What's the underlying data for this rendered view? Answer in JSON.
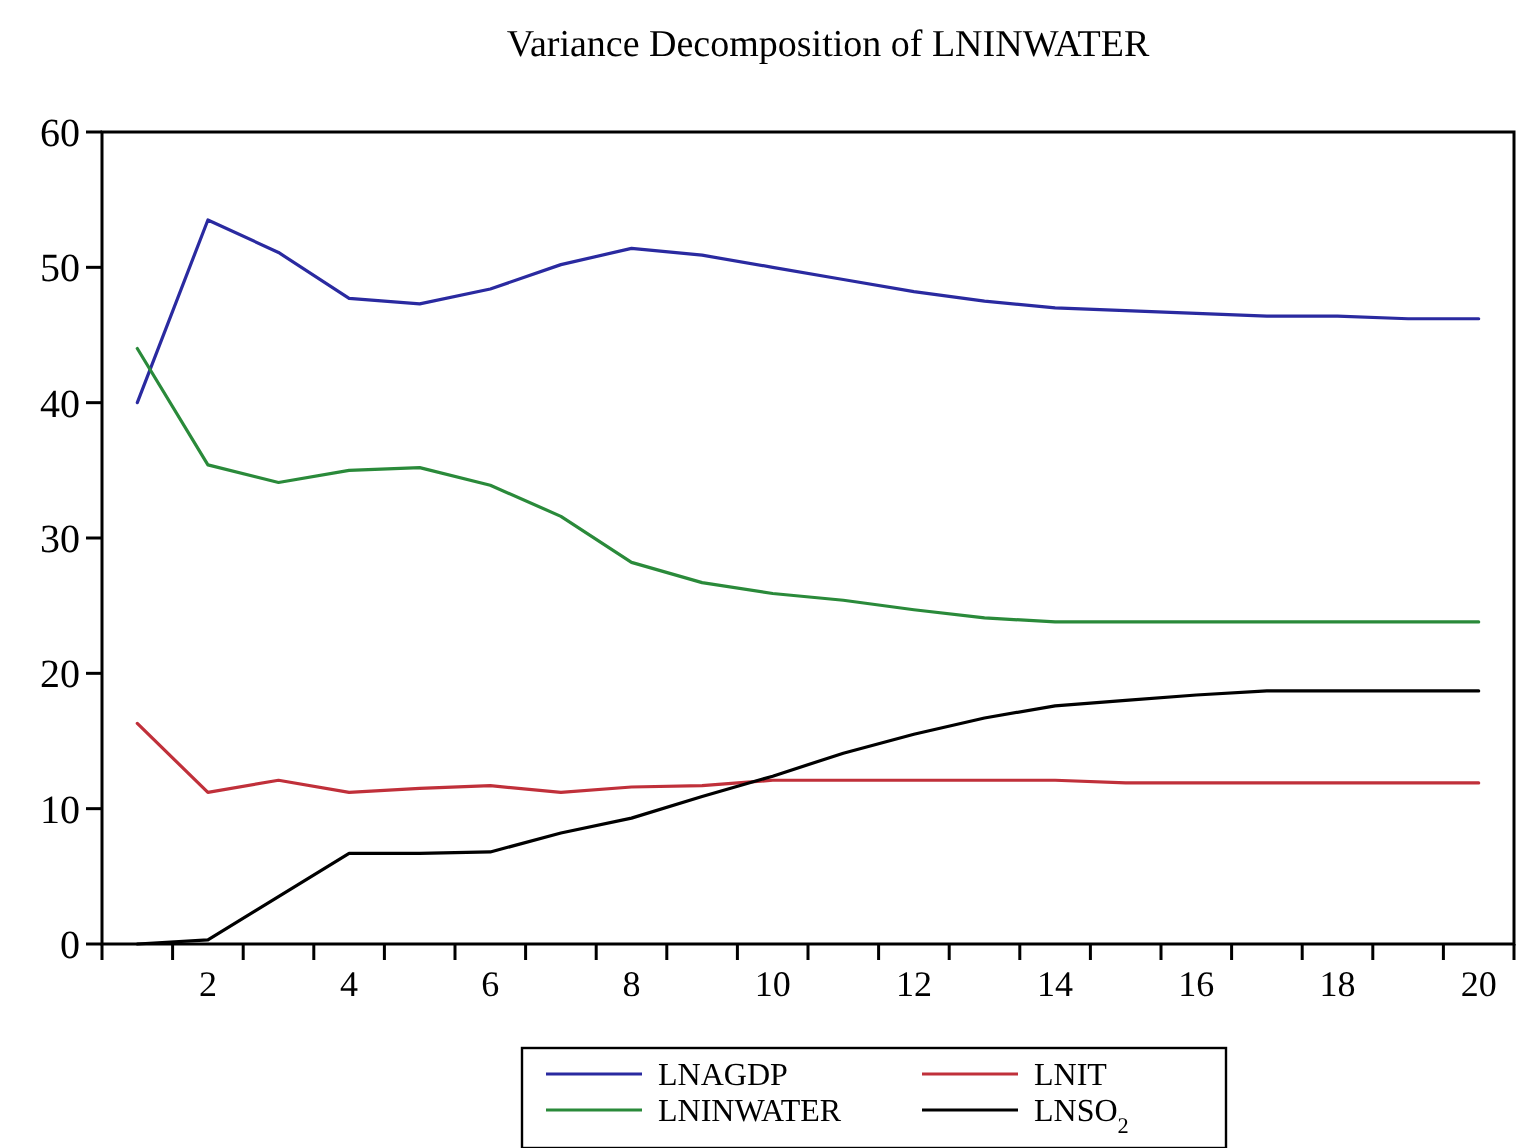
{
  "chart_data": {
    "type": "line",
    "title": "Variance Decomposition of LNINWATER",
    "x": [
      1,
      2,
      3,
      4,
      5,
      6,
      7,
      8,
      9,
      10,
      11,
      12,
      13,
      14,
      15,
      16,
      17,
      18,
      19,
      20
    ],
    "series": [
      {
        "name": "LNAGDP",
        "color": "#2a2aa0",
        "values": [
          40.0,
          53.5,
          51.1,
          47.7,
          47.3,
          48.4,
          50.2,
          51.4,
          50.9,
          50.0,
          49.1,
          48.2,
          47.5,
          47.0,
          46.8,
          46.6,
          46.4,
          46.4,
          46.2,
          46.2
        ]
      },
      {
        "name": "LNIT",
        "color": "#c0303a",
        "values": [
          16.3,
          11.2,
          12.1,
          11.2,
          11.5,
          11.7,
          11.2,
          11.6,
          11.7,
          12.1,
          12.1,
          12.1,
          12.1,
          12.1,
          11.9,
          11.9,
          11.9,
          11.9,
          11.9,
          11.9
        ]
      },
      {
        "name": "LNINWATER",
        "color": "#2a8a3a",
        "values": [
          44.0,
          35.4,
          34.1,
          35.0,
          35.2,
          33.9,
          31.6,
          28.2,
          26.7,
          25.9,
          25.4,
          24.7,
          24.1,
          23.8,
          23.8,
          23.8,
          23.8,
          23.8,
          23.8,
          23.8
        ]
      },
      {
        "name": "LNSO$_{2}$",
        "color": "#000000",
        "values": [
          0.0,
          0.3,
          3.5,
          6.7,
          6.7,
          6.8,
          8.2,
          9.3,
          10.9,
          12.4,
          14.1,
          15.5,
          16.7,
          17.6,
          18.0,
          18.4,
          18.7,
          18.7,
          18.7,
          18.7
        ]
      }
    ],
    "xlim": [
      0.5,
      20.5
    ],
    "xticks": [
      {
        "value": 0.5,
        "label": null
      },
      {
        "value": 1.5,
        "label": null
      },
      2,
      {
        "value": 2.5,
        "label": null
      },
      {
        "value": 3.5,
        "label": null
      },
      4,
      {
        "value": 4.5,
        "label": null
      },
      {
        "value": 5.5,
        "label": null
      },
      6,
      {
        "value": 6.5,
        "label": null
      },
      {
        "value": 7.5,
        "label": null
      },
      8,
      {
        "value": 8.5,
        "label": null
      },
      {
        "value": 9.5,
        "label": null
      },
      10,
      {
        "value": 10.5,
        "label": null
      },
      {
        "value": 11.5,
        "label": null
      },
      12,
      {
        "value": 12.5,
        "label": null
      },
      {
        "value": 13.5,
        "label": null
      },
      14,
      {
        "value": 14.5,
        "label": null
      },
      {
        "value": 15.5,
        "label": null
      },
      16,
      {
        "value": 16.5,
        "label": null
      },
      {
        "value": 17.5,
        "label": null
      },
      18,
      {
        "value": 18.5,
        "label": null
      },
      {
        "value": 19.5,
        "label": null
      },
      20,
      {
        "value": 20.5,
        "label": null
      }
    ],
    "ylim": [
      0,
      60
    ],
    "yticks": [
      0,
      10,
      20,
      30,
      40,
      50,
      60
    ],
    "grid": false,
    "legend": "bottom",
    "marker": "none",
    "line_style": "solid"
  }
}
